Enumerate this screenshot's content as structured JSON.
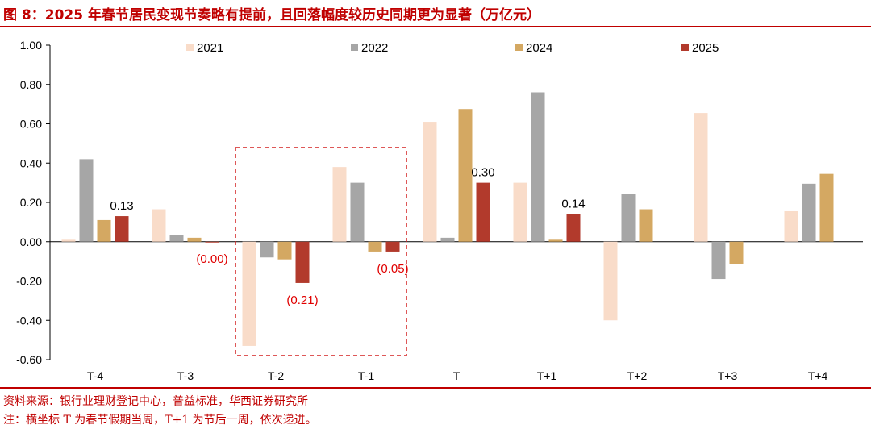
{
  "header": {
    "title": "图 8：2025 年春节居民变现节奏略有提前，且回落幅度较历史同期更为显著（万亿元）"
  },
  "footer": {
    "source": "资料来源：银行业理财登记中心，普益标准，华西证券研究所",
    "note": "注：横坐标 T 为春节假期当周，T+1 为节后一周，依次递进。"
  },
  "chart_data": {
    "type": "bar",
    "categories": [
      "T-4",
      "T-3",
      "T-2",
      "T-1",
      "T",
      "T+1",
      "T+2",
      "T+3",
      "T+4"
    ],
    "series": [
      {
        "name": "2021",
        "color": "#f9dcc9",
        "values": [
          0.01,
          0.165,
          -0.53,
          0.38,
          0.61,
          0.3,
          -0.4,
          0.655,
          0.155
        ]
      },
      {
        "name": "2022",
        "color": "#a6a6a6",
        "values": [
          0.42,
          0.035,
          -0.08,
          0.3,
          0.02,
          0.76,
          0.245,
          -0.19,
          0.295
        ]
      },
      {
        "name": "2024",
        "color": "#d4a862",
        "values": [
          0.11,
          0.02,
          -0.09,
          -0.05,
          0.675,
          0.01,
          0.165,
          -0.115,
          0.345
        ]
      },
      {
        "name": "2025",
        "color": "#b23a2c",
        "values": [
          0.13,
          -0.0,
          -0.21,
          -0.05,
          0.3,
          0.14,
          null,
          null,
          null
        ]
      }
    ],
    "data_labels": [
      {
        "series": "2025",
        "category": "T-4",
        "text": "0.13",
        "color": "#000000"
      },
      {
        "series": "2025",
        "category": "T-3",
        "text": "(0.00)",
        "color": "#e00000"
      },
      {
        "series": "2025",
        "category": "T-2",
        "text": "(0.21)",
        "color": "#e00000"
      },
      {
        "series": "2025",
        "category": "T-1",
        "text": "(0.05)",
        "color": "#e00000"
      },
      {
        "series": "2025",
        "category": "T",
        "text": "0.30",
        "color": "#000000"
      },
      {
        "series": "2025",
        "category": "T+1",
        "text": "0.14",
        "color": "#000000"
      }
    ],
    "highlight": {
      "from": "T-2",
      "to": "T-1",
      "color": "#d42020"
    },
    "yticks": [
      "1.00",
      "0.80",
      "0.60",
      "0.40",
      "0.20",
      "0.00",
      "-0.20",
      "-0.40",
      "-0.60"
    ],
    "ylim": [
      -0.6,
      1.0
    ],
    "legend": "top",
    "xlabel": "",
    "ylabel": ""
  }
}
